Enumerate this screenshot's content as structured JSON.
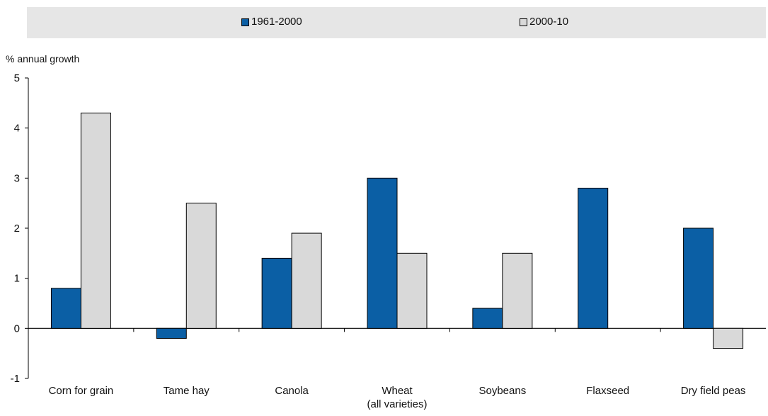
{
  "legend": {
    "items": [
      {
        "label": "1961-2000",
        "color": "#0b5fa5"
      },
      {
        "label": "2000-10",
        "color": "#d9d9d9"
      }
    ]
  },
  "chart_data": {
    "type": "bar",
    "ylabel": "% annual growth",
    "ylim": [
      -1,
      5
    ],
    "yticks": [
      -1,
      0,
      1,
      2,
      3,
      4,
      5
    ],
    "grid": false,
    "legend_position": "top",
    "categories": [
      "Corn for grain",
      "Tame hay",
      "Canola",
      "Wheat\n(all varieties)",
      "Soybeans",
      "Flaxseed",
      "Dry field peas"
    ],
    "series": [
      {
        "name": "1961-2000",
        "color": "#0b5fa5",
        "values": [
          0.8,
          -0.2,
          1.4,
          3.0,
          0.4,
          2.8,
          2.0
        ]
      },
      {
        "name": "2000-10",
        "color": "#d9d9d9",
        "values": [
          4.3,
          2.5,
          1.9,
          1.5,
          1.5,
          null,
          -0.4
        ]
      }
    ]
  }
}
